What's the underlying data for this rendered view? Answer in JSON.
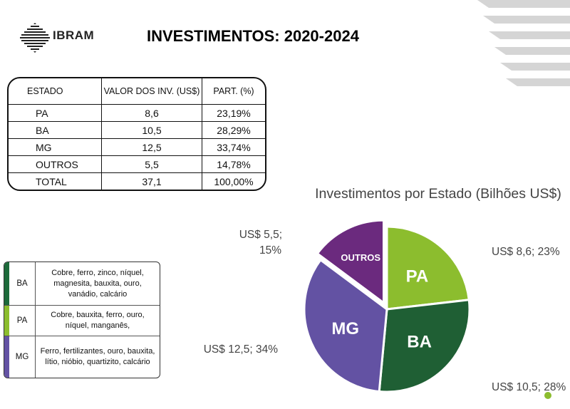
{
  "header": {
    "logo_text": "IBRAM",
    "title": "INVESTIMENTOS: 2020-2024"
  },
  "table": {
    "headers": [
      "ESTADO",
      "VALOR DOS INV. (US$)",
      "PART. (%)"
    ],
    "rows": [
      [
        "PA",
        "8,6",
        "23,19%"
      ],
      [
        "BA",
        "10,5",
        "28,29%"
      ],
      [
        "MG",
        "12,5",
        "33,74%"
      ],
      [
        "OUTROS",
        "5,5",
        "14,78%"
      ],
      [
        "TOTAL",
        "37,1",
        "100,00%"
      ]
    ]
  },
  "minerals": [
    {
      "state": "BA",
      "text": "Cobre, ferro, zinco, níquel, magnesita, bauxita, ouro, vanádio, calcário",
      "color": "#1d6a3b"
    },
    {
      "state": "PA",
      "text": "Cobre, bauxita, ferro, ouro, níquel, manganês,",
      "color": "#8cbd2e"
    },
    {
      "state": "MG",
      "text": "Ferro, fertilizantes, ouro, bauxita, lítio, nióbio, quartizito, calcário",
      "color": "#6352a3"
    }
  ],
  "chart_data": {
    "type": "pie",
    "title": "Investimentos por Estado (Bilhões US$)",
    "slices": [
      {
        "name": "PA",
        "value": 8.6,
        "label": "US$ 8,6; 23%",
        "color": "#8cbd2e"
      },
      {
        "name": "BA",
        "value": 10.5,
        "label": "US$ 10,5; 28%",
        "color": "#1f5f34"
      },
      {
        "name": "MG",
        "value": 12.5,
        "label": "US$ 12,5; 34%",
        "color": "#6352a3"
      },
      {
        "name": "OUTROS",
        "value": 5.5,
        "label": "US$ 5,5; 15%",
        "color": "#6b2a7e",
        "exploded": true
      }
    ]
  },
  "colors": {
    "accent_dot": "#8cbd2e",
    "corner_stripes": "#d5d5d5"
  }
}
